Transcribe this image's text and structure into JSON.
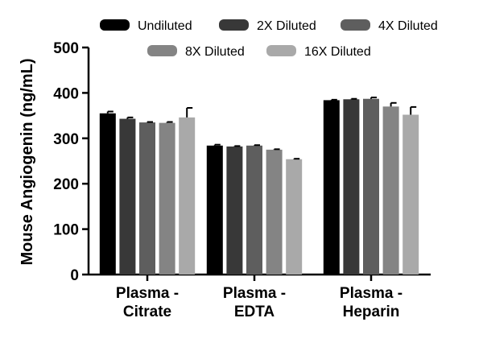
{
  "chart_data": {
    "type": "bar",
    "title": "",
    "xlabel": "",
    "ylabel": "Mouse Angiogenin (ng/mL)",
    "ylim": [
      0,
      500
    ],
    "yticks": [
      0,
      100,
      200,
      300,
      400,
      500
    ],
    "categories": [
      [
        "Plasma -",
        "Citrate"
      ],
      [
        "Plasma -",
        "EDTA"
      ],
      [
        "Plasma -",
        "Heparin"
      ]
    ],
    "legend_position": "top",
    "series": [
      {
        "name": "Undiluted",
        "color": "#000000",
        "values": [
          355,
          284,
          384
        ],
        "errors": [
          4,
          2,
          1
        ]
      },
      {
        "name": "2X Diluted",
        "color": "#383838",
        "values": [
          343,
          282,
          386
        ],
        "errors": [
          3,
          1,
          1
        ]
      },
      {
        "name": "4X Diluted",
        "color": "#5e5e5e",
        "values": [
          335,
          284,
          387
        ],
        "errors": [
          1,
          1,
          3
        ]
      },
      {
        "name": "8X Diluted",
        "color": "#848484",
        "values": [
          334,
          275,
          370
        ],
        "errors": [
          2,
          1,
          8
        ]
      },
      {
        "name": "16X Diluted",
        "color": "#a9a9a9",
        "values": [
          346,
          254,
          352
        ],
        "errors": [
          21,
          1,
          17
        ]
      }
    ]
  }
}
